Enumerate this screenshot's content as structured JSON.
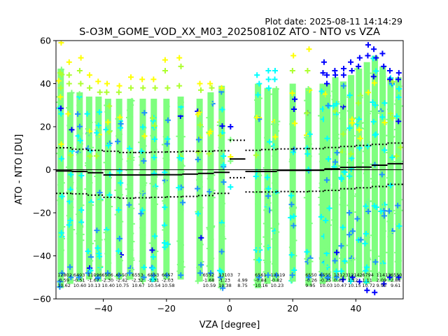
{
  "plot_date": "Plot date: 2025-08-11 14:14:29",
  "chart_data": {
    "type": "scatter",
    "title": "S-O3M_GOME_VOD_XX_M03_20250810Z ATO - NTO vs VZA",
    "xlabel": "VZA [degree]",
    "ylabel": "ATO - NTO [DU]",
    "xlim": [
      -55,
      55
    ],
    "ylim": [
      -60,
      60
    ],
    "xticks": [
      -40,
      -20,
      0,
      20,
      40
    ],
    "yticks": [
      -60,
      -40,
      -20,
      0,
      20,
      40,
      60
    ],
    "grid": false,
    "point_colors": [
      "#7fff7f",
      "#00ffff",
      "#1e90ff",
      "#0000ff",
      "#ffff00",
      "#adff2f"
    ],
    "columns": [
      {
        "x": -53.5,
        "lo": -55,
        "hi": 47,
        "outliers": [
          59,
          45,
          38,
          -48,
          -52
        ]
      },
      {
        "x": -50.5,
        "lo": -53,
        "hi": 36,
        "outliers": [
          50,
          44,
          40,
          -50
        ]
      },
      {
        "x": -47.5,
        "lo": -52,
        "hi": 36,
        "outliers": [
          52,
          46,
          40,
          -50
        ]
      },
      {
        "x": -44.5,
        "lo": -51,
        "hi": 34,
        "outliers": [
          44,
          38,
          -48
        ]
      },
      {
        "x": -41.5,
        "lo": -52,
        "hi": 34,
        "outliers": [
          41,
          36,
          -50
        ]
      },
      {
        "x": -38.5,
        "lo": -51,
        "hi": 33,
        "outliers": [
          40,
          36,
          -48
        ]
      },
      {
        "x": -35,
        "lo": -51,
        "hi": 33,
        "outliers": [
          39,
          36,
          -49
        ]
      },
      {
        "x": -31.5,
        "lo": -51,
        "hi": 33,
        "outliers": [
          43,
          38,
          -48
        ]
      },
      {
        "x": -27.5,
        "lo": -52,
        "hi": 33,
        "outliers": [
          42,
          38,
          -50
        ]
      },
      {
        "x": -24,
        "lo": -52,
        "hi": 33,
        "outliers": [
          42,
          38,
          -49
        ]
      },
      {
        "x": -20,
        "lo": -51,
        "hi": 33,
        "outliers": [
          51,
          46,
          38,
          -49
        ]
      },
      {
        "x": -15.5,
        "lo": -51,
        "hi": 34,
        "outliers": [
          52,
          48,
          39,
          -49
        ]
      },
      {
        "x": -9.5,
        "lo": -52,
        "hi": 33,
        "outliers": [
          40,
          37,
          -48
        ]
      },
      {
        "x": -6,
        "lo": -52,
        "hi": 36,
        "outliers": [
          40,
          38,
          -48
        ]
      },
      {
        "x": -2.5,
        "lo": -55,
        "hi": 39,
        "outliers": [
          38,
          -50,
          -55
        ]
      },
      {
        "x": 9,
        "lo": -55,
        "hi": 40,
        "outliers": [
          44,
          40,
          -50
        ]
      },
      {
        "x": 12,
        "lo": -53,
        "hi": 38,
        "outliers": [
          46,
          42,
          -49
        ]
      },
      {
        "x": 14.5,
        "lo": -52,
        "hi": 38,
        "outliers": [
          46,
          42,
          -49
        ]
      },
      {
        "x": 20,
        "lo": -52,
        "hi": 40,
        "outliers": [
          53,
          46,
          -49
        ]
      },
      {
        "x": 25,
        "lo": -54,
        "hi": 38,
        "outliers": [
          56,
          46,
          -50
        ]
      },
      {
        "x": 29.5,
        "lo": -53,
        "hi": 40,
        "outliers": [
          50,
          45,
          -49
        ]
      },
      {
        "x": 31,
        "lo": -52,
        "hi": 40,
        "outliers": [
          44,
          40,
          -50
        ]
      },
      {
        "x": 33.5,
        "lo": -52,
        "hi": 43,
        "outliers": [
          46,
          44,
          -50
        ]
      },
      {
        "x": 36,
        "lo": -51,
        "hi": 41,
        "outliers": [
          47,
          44,
          -51
        ]
      },
      {
        "x": 38.5,
        "lo": -52,
        "hi": 44,
        "outliers": [
          50,
          46,
          -50
        ]
      },
      {
        "x": 41,
        "lo": -50,
        "hi": 47,
        "outliers": [
          52,
          48,
          -52
        ]
      },
      {
        "x": 43.5,
        "lo": -53,
        "hi": 50,
        "outliers": [
          58,
          53,
          -56
        ]
      },
      {
        "x": 46,
        "lo": -52,
        "hi": 53,
        "outliers": [
          56,
          52,
          -57
        ]
      },
      {
        "x": 48.5,
        "lo": -52,
        "hi": 48,
        "outliers": [
          54,
          48,
          -53
        ]
      },
      {
        "x": 51,
        "lo": -52,
        "hi": 43,
        "outliers": [
          46,
          42,
          -50
        ]
      },
      {
        "x": 53.5,
        "lo": -51,
        "hi": 43,
        "outliers": [
          45,
          42,
          -50
        ]
      }
    ],
    "isolated_points": [
      {
        "x": 0.3,
        "y": 20,
        "color": "#0000ff"
      },
      {
        "x": 0.3,
        "y": 14,
        "color": "#7fff7f"
      },
      {
        "x": 0.3,
        "y": 6,
        "color": "#ffff00"
      },
      {
        "x": 0.3,
        "y": 4,
        "color": "#7fff7f"
      },
      {
        "x": 0.3,
        "y": -8,
        "color": "#00ffff"
      }
    ],
    "mean_line": [
      {
        "x": -55,
        "y": -0.6
      },
      {
        "x": -50,
        "y": -0.8
      },
      {
        "x": -45,
        "y": -1.4
      },
      {
        "x": -40,
        "y": -2.4
      },
      {
        "x": -35,
        "y": -2.4
      },
      {
        "x": -30,
        "y": -2.4
      },
      {
        "x": -25,
        "y": -2.3
      },
      {
        "x": -20,
        "y": -2.3
      },
      {
        "x": -15,
        "y": -2.0
      },
      {
        "x": -10,
        "y": -1.7
      },
      {
        "x": -5,
        "y": -1.2
      },
      {
        "x": 0,
        "y": 5.0
      },
      {
        "x": 5,
        "y": -0.8
      },
      {
        "x": 10,
        "y": -0.8
      },
      {
        "x": 15,
        "y": -0.3
      },
      {
        "x": 20,
        "y": -0.3
      },
      {
        "x": 25,
        "y": -0.25
      },
      {
        "x": 30,
        "y": 0.4
      },
      {
        "x": 35,
        "y": 1.1
      },
      {
        "x": 40,
        "y": 1.2
      },
      {
        "x": 45,
        "y": 2.1
      },
      {
        "x": 50,
        "y": 2.8
      },
      {
        "x": 55,
        "y": 2.9
      }
    ],
    "upper_line": [
      {
        "x": -55,
        "y": 10.2
      },
      {
        "x": -50,
        "y": 9.5
      },
      {
        "x": -45,
        "y": 9.0
      },
      {
        "x": -40,
        "y": 8.6
      },
      {
        "x": -35,
        "y": 8.0
      },
      {
        "x": -30,
        "y": 8.0
      },
      {
        "x": -25,
        "y": 8.2
      },
      {
        "x": -20,
        "y": 8.3
      },
      {
        "x": -15,
        "y": 8.6
      },
      {
        "x": -10,
        "y": 8.6
      },
      {
        "x": -5,
        "y": 8.8
      },
      {
        "x": 0,
        "y": 13.7
      },
      {
        "x": 5,
        "y": 9.0
      },
      {
        "x": 10,
        "y": 9.4
      },
      {
        "x": 15,
        "y": 9.7
      },
      {
        "x": 20,
        "y": 9.8
      },
      {
        "x": 25,
        "y": 9.8
      },
      {
        "x": 30,
        "y": 10.3
      },
      {
        "x": 35,
        "y": 10.8
      },
      {
        "x": 40,
        "y": 11.3
      },
      {
        "x": 45,
        "y": 11.8
      },
      {
        "x": 50,
        "y": 12.4
      },
      {
        "x": 55,
        "y": 12.5
      }
    ],
    "lower_line": [
      {
        "x": -55,
        "y": -11.0
      },
      {
        "x": -50,
        "y": -11.2
      },
      {
        "x": -45,
        "y": -11.8
      },
      {
        "x": -40,
        "y": -12.8
      },
      {
        "x": -35,
        "y": -13.2
      },
      {
        "x": -30,
        "y": -13.0
      },
      {
        "x": -25,
        "y": -12.8
      },
      {
        "x": -20,
        "y": -12.6
      },
      {
        "x": -15,
        "y": -12.4
      },
      {
        "x": -10,
        "y": -12.0
      },
      {
        "x": -5,
        "y": -11.0
      },
      {
        "x": 0,
        "y": -3.7
      },
      {
        "x": 5,
        "y": -10.3
      },
      {
        "x": 10,
        "y": -10.3
      },
      {
        "x": 15,
        "y": -10.1
      },
      {
        "x": 20,
        "y": -10.2
      },
      {
        "x": 25,
        "y": -10.0
      },
      {
        "x": 30,
        "y": -9.6
      },
      {
        "x": 35,
        "y": -8.8
      },
      {
        "x": 40,
        "y": -8.4
      },
      {
        "x": 45,
        "y": -7.8
      },
      {
        "x": 50,
        "y": -6.8
      },
      {
        "x": 55,
        "y": -6.7
      }
    ],
    "stat_labels": [
      {
        "x": -54.5,
        "lines": [
          "12802",
          "-0.59",
          "10.62"
        ]
      },
      {
        "x": -49.5,
        "lines": [
          "6493",
          "-0.51",
          "10.60"
        ]
      },
      {
        "x": -45,
        "lines": [
          "11096",
          "-1.67",
          "10.13"
        ]
      },
      {
        "x": -40.5,
        "lines": [
          "6506",
          "-2.30",
          "10.40"
        ]
      },
      {
        "x": -36,
        "lines": [
          "6550",
          "-2.42",
          "10.75"
        ]
      },
      {
        "x": -31,
        "lines": [
          "6553",
          "-2.32",
          "10.67"
        ]
      },
      {
        "x": -26,
        "lines": [
          "6553",
          "-2.31",
          "10.54"
        ]
      },
      {
        "x": -21.5,
        "lines": [
          "6557",
          "-2.03",
          "10.58"
        ]
      },
      {
        "x": -8.5,
        "lines": [
          "6552",
          "-1.68",
          "10.59"
        ]
      },
      {
        "x": -3.5,
        "lines": [
          "13103",
          "-1.23",
          "10.38"
        ]
      },
      {
        "x": 2.5,
        "lines": [
          "7",
          "4.99",
          "8.75"
        ]
      },
      {
        "x": 8,
        "lines": [
          "6561",
          "-0.84",
          "10.16"
        ]
      },
      {
        "x": 13,
        "lines": [
          "13119",
          "-0.82",
          "10.23"
        ]
      },
      {
        "x": 24,
        "lines": [
          "6550",
          "-0.26",
          "9.95"
        ]
      },
      {
        "x": 28.5,
        "lines": [
          "6555",
          "-0.25",
          "10.03"
        ]
      },
      {
        "x": 33,
        "lines": [
          "13123",
          "0.42",
          "10.47"
        ]
      },
      {
        "x": 37.5,
        "lines": [
          "12142",
          "1.12",
          "10.15"
        ]
      },
      {
        "x": 42,
        "lines": [
          "6794",
          "1.11",
          "10.72"
        ]
      },
      {
        "x": 46.5,
        "lines": [
          "11413",
          "2.09",
          "9.95"
        ]
      },
      {
        "x": 51,
        "lines": [
          "6550",
          "2.84",
          "9.61"
        ]
      }
    ]
  }
}
